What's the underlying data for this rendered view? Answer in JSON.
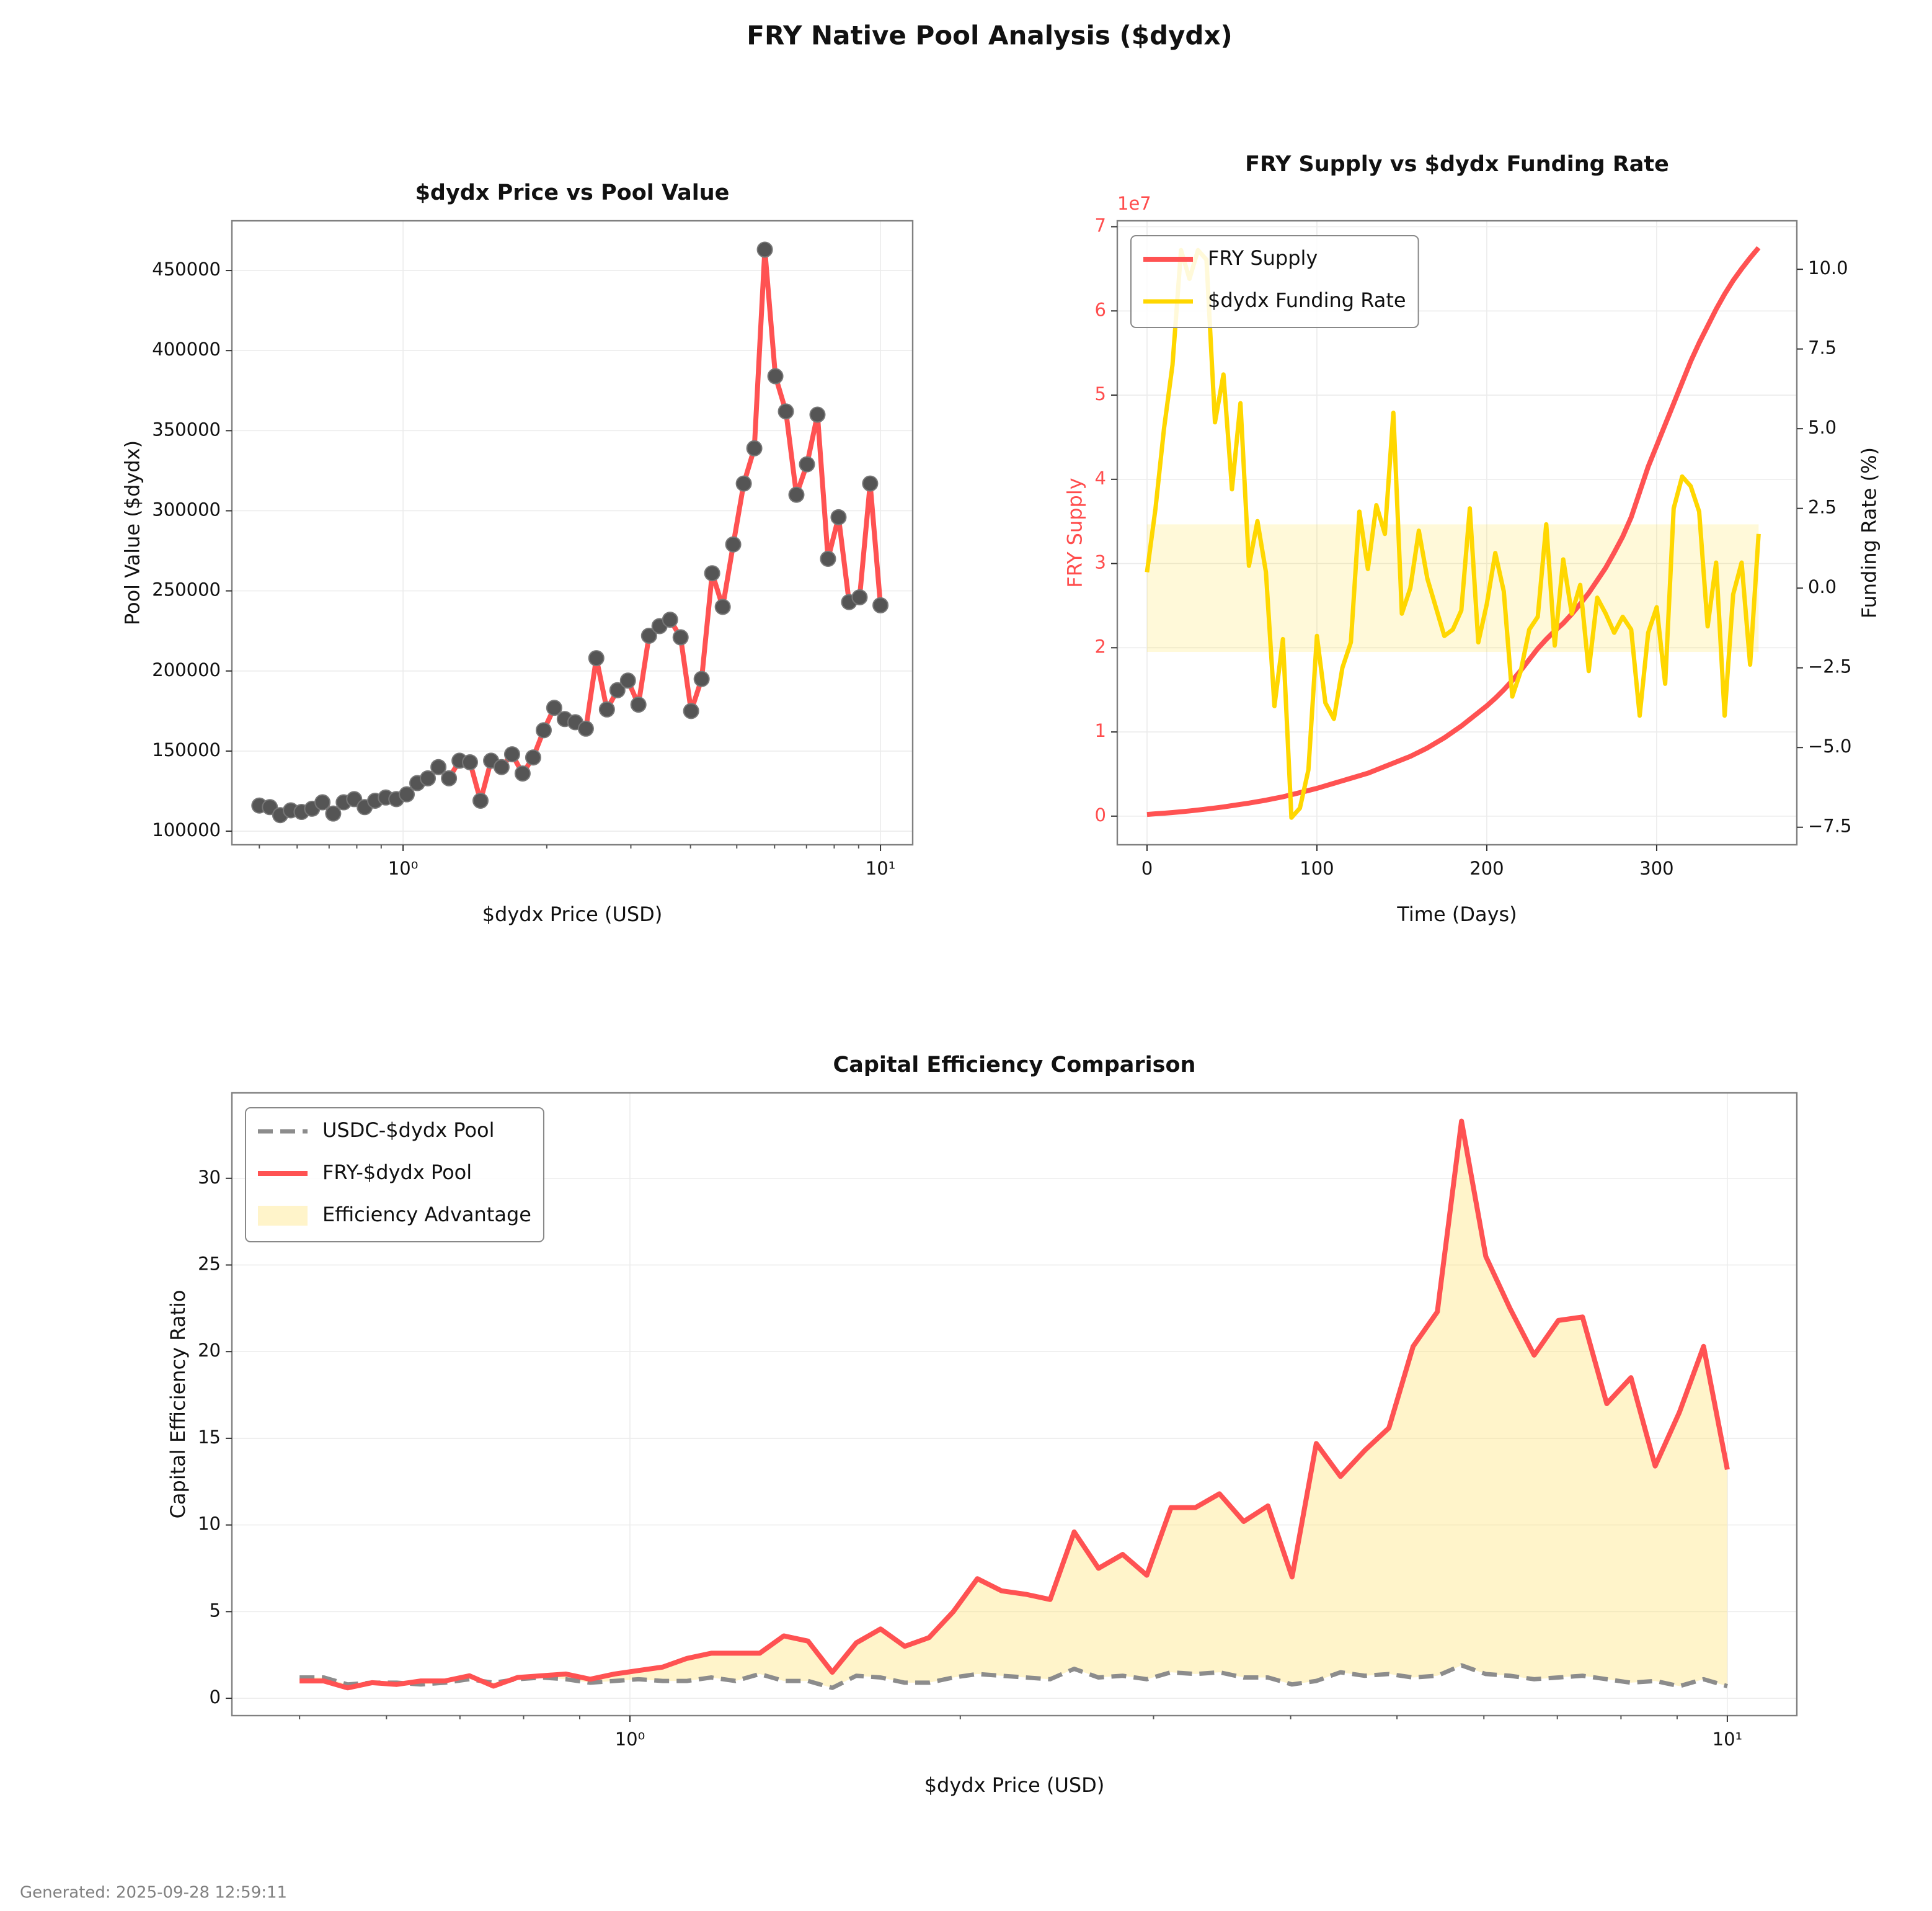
{
  "title": "FRY Native Pool Analysis ($dydx)",
  "footer": "Generated: 2025-09-28 12:59:11",
  "chart_data": [
    {
      "type": "line",
      "title": "$dydx Price vs Pool Value",
      "xlabel": "$dydx Price (USD)",
      "ylabel": "Pool Value ($dydx)",
      "xscale": "log",
      "grid": true,
      "xlim": [
        0.438,
        11.68
      ],
      "xticks": [
        {
          "value": 1,
          "label": "10⁰"
        },
        {
          "value": 10,
          "label": "10¹"
        }
      ],
      "xminorticks": [
        0.5,
        0.6,
        0.7,
        0.8,
        0.9,
        2,
        3,
        4,
        5,
        6,
        7,
        8,
        9
      ],
      "ylim": [
        91500,
        481000
      ],
      "yticks": [
        100000,
        150000,
        200000,
        250000,
        300000,
        350000,
        400000,
        450000
      ],
      "marker_color": "#555555",
      "x": [
        0.5,
        0.526,
        0.553,
        0.582,
        0.613,
        0.645,
        0.678,
        0.714,
        0.751,
        0.79,
        0.831,
        0.874,
        0.92,
        0.968,
        1.018,
        1.071,
        1.127,
        1.186,
        1.248,
        1.313,
        1.381,
        1.453,
        1.529,
        1.608,
        1.692,
        1.78,
        1.873,
        1.971,
        2.073,
        2.181,
        2.295,
        2.415,
        2.54,
        2.673,
        2.812,
        2.958,
        3.112,
        3.275,
        3.445,
        3.625,
        3.814,
        4.012,
        4.221,
        4.441,
        4.673,
        4.916,
        5.172,
        5.442,
        5.725,
        6.024,
        6.337,
        6.667,
        7.015,
        7.38,
        7.765,
        8.169,
        8.595,
        9.043,
        9.514,
        10
      ],
      "series": [
        {
          "color": "#ff5252",
          "width": 4,
          "values": [
            116000,
            115000,
            110000,
            113000,
            112000,
            114000,
            118000,
            111000,
            118000,
            120000,
            115000,
            119000,
            121000,
            120000,
            123000,
            130000,
            133000,
            140000,
            133000,
            144000,
            143000,
            119000,
            144000,
            140000,
            148000,
            136000,
            146000,
            163000,
            177000,
            170000,
            168000,
            164000,
            208000,
            176000,
            188000,
            194000,
            179000,
            222000,
            228000,
            232000,
            221000,
            175000,
            195000,
            261000,
            240000,
            279000,
            317000,
            339000,
            463000,
            384000,
            362000,
            310000,
            329000,
            360000,
            270000,
            296000,
            243000,
            246000,
            317000,
            241000
          ]
        }
      ]
    },
    {
      "type": "line",
      "title": "FRY Supply vs $dydx Funding Rate",
      "xlabel": "Time (Days)",
      "ylabel": "FRY Supply",
      "ylabel_color": "#ff4d4d",
      "y_offset_label": "1e7",
      "y2label": "Funding Rate (%)",
      "grid": true,
      "legend": "upper left",
      "xlim": [
        -17.5,
        382.5
      ],
      "xticks": [
        0,
        100,
        200,
        300
      ],
      "ylim": [
        -3400000,
        70700000
      ],
      "yticks": [
        {
          "value": 0,
          "label": "0"
        },
        {
          "value": 10000000,
          "label": "1"
        },
        {
          "value": 20000000,
          "label": "2"
        },
        {
          "value": 30000000,
          "label": "3"
        },
        {
          "value": 40000000,
          "label": "4"
        },
        {
          "value": 50000000,
          "label": "5"
        },
        {
          "value": 60000000,
          "label": "6"
        },
        {
          "value": 70000000,
          "label": "7"
        }
      ],
      "y2lim": [
        -8.05,
        11.52
      ],
      "y2ticks": [
        {
          "value": -7.5,
          "label": "−7.5"
        },
        {
          "value": -5,
          "label": "−5.0"
        },
        {
          "value": -2.5,
          "label": "−2.5"
        },
        {
          "value": 0,
          "label": "0.0"
        },
        {
          "value": 2.5,
          "label": "2.5"
        },
        {
          "value": 5,
          "label": "5.0"
        },
        {
          "value": 7.5,
          "label": "7.5"
        },
        {
          "value": 10,
          "label": "10.0"
        }
      ],
      "band": {
        "axis": "y2",
        "range": [
          -2,
          2
        ],
        "color": "#ffd700",
        "opacity": 0.15
      },
      "x": [
        0,
        5,
        10,
        15,
        20,
        25,
        30,
        35,
        40,
        45,
        50,
        55,
        60,
        65,
        70,
        75,
        80,
        85,
        90,
        95,
        100,
        105,
        110,
        115,
        120,
        125,
        130,
        135,
        140,
        145,
        150,
        155,
        160,
        165,
        170,
        175,
        180,
        185,
        190,
        195,
        200,
        205,
        210,
        215,
        220,
        225,
        230,
        235,
        240,
        245,
        250,
        255,
        260,
        265,
        270,
        275,
        280,
        285,
        290,
        295,
        300,
        305,
        310,
        315,
        320,
        325,
        330,
        335,
        340,
        345,
        350,
        355,
        360
      ],
      "series": [
        {
          "name": "FRY Supply",
          "color": "#ff5252",
          "width": 4,
          "axis": "y",
          "values": [
            200000,
            280000,
            350000,
            430000,
            520000,
            620000,
            730000,
            850000,
            970000,
            1100000,
            1250000,
            1400000,
            1550000,
            1720000,
            1900000,
            2100000,
            2300000,
            2550000,
            2800000,
            3050000,
            3300000,
            3600000,
            3900000,
            4200000,
            4500000,
            4800000,
            5100000,
            5500000,
            5900000,
            6300000,
            6700000,
            7100000,
            7600000,
            8100000,
            8700000,
            9300000,
            10000000,
            10700000,
            11500000,
            12300000,
            13100000,
            14000000,
            15000000,
            16100000,
            17300000,
            18600000,
            19900000,
            21000000,
            22000000,
            22900000,
            24000000,
            25200000,
            26500000,
            28000000,
            29500000,
            31300000,
            33200000,
            35500000,
            38500000,
            41500000,
            44000000,
            46500000,
            49000000,
            51500000,
            54000000,
            56200000,
            58200000,
            60200000,
            62000000,
            63600000,
            65000000,
            66300000,
            67500000
          ]
        },
        {
          "name": "$dydx Funding Rate",
          "color": "#ffd700",
          "width": 3.5,
          "axis": "y2",
          "values": [
            0.5,
            2.5,
            5.0,
            7.0,
            10.6,
            9.7,
            10.6,
            10.3,
            5.2,
            6.7,
            3.1,
            5.8,
            0.7,
            2.1,
            0.5,
            -3.7,
            -1.6,
            -7.2,
            -6.9,
            -5.7,
            -1.5,
            -3.6,
            -4.1,
            -2.5,
            -1.7,
            2.4,
            0.6,
            2.6,
            1.7,
            5.5,
            -0.8,
            0,
            1.8,
            0.3,
            -0.6,
            -1.5,
            -1.3,
            -0.7,
            2.5,
            -1.7,
            -0.5,
            1.1,
            -0.1,
            -3.4,
            -2.6,
            -1.3,
            -0.9,
            2.0,
            -1.8,
            0.9,
            -0.8,
            0.1,
            -2.6,
            -0.3,
            -0.8,
            -1.4,
            -0.9,
            -1.3,
            -4.0,
            -1.4,
            -0.6,
            -3.0,
            2.5,
            3.5,
            3.2,
            2.4,
            -1.2,
            0.8,
            -4.0,
            -0.2,
            0.8,
            -2.4,
            1.7
          ]
        }
      ]
    },
    {
      "type": "line",
      "title": "Capital Efficiency Comparison",
      "xlabel": "$dydx Price (USD)",
      "ylabel": "Capital Efficiency Ratio",
      "xscale": "log",
      "grid": true,
      "legend": "upper left",
      "xlim": [
        0.4338,
        11.57
      ],
      "xticks": [
        {
          "value": 1,
          "label": "10⁰"
        },
        {
          "value": 10,
          "label": "10¹"
        }
      ],
      "xminorticks": [
        0.5,
        0.6,
        0.7,
        0.8,
        0.9,
        2,
        3,
        4,
        5,
        6,
        7,
        8,
        9
      ],
      "ylim": [
        -1.0,
        34.93
      ],
      "yticks": [
        0,
        5,
        10,
        15,
        20,
        25,
        30
      ],
      "fill": {
        "name": "Efficiency Advantage",
        "color": "#ffe066",
        "opacity": 0.35
      },
      "x": [
        0.5,
        0.526,
        0.553,
        0.582,
        0.613,
        0.645,
        0.678,
        0.714,
        0.751,
        0.79,
        0.831,
        0.874,
        0.92,
        0.968,
        1.018,
        1.071,
        1.127,
        1.186,
        1.248,
        1.313,
        1.381,
        1.453,
        1.529,
        1.608,
        1.692,
        1.78,
        1.873,
        1.971,
        2.073,
        2.181,
        2.295,
        2.415,
        2.54,
        2.673,
        2.812,
        2.958,
        3.112,
        3.275,
        3.445,
        3.625,
        3.814,
        4.012,
        4.221,
        4.441,
        4.673,
        4.916,
        5.172,
        5.442,
        5.725,
        6.024,
        6.337,
        6.667,
        7.015,
        7.38,
        7.765,
        8.169,
        8.595,
        9.043,
        9.514,
        10
      ],
      "series": [
        {
          "name": "USDC-$dydx Pool",
          "color": "#8c8c8c",
          "width": 3.5,
          "dash": true,
          "values": [
            1.2,
            1.2,
            0.8,
            0.9,
            0.9,
            0.8,
            0.9,
            1.1,
            0.9,
            1.1,
            1.2,
            1.1,
            0.9,
            1.0,
            1.1,
            1.0,
            1.0,
            1.2,
            1.0,
            1.4,
            1.0,
            1.0,
            0.6,
            1.3,
            1.2,
            0.9,
            0.9,
            1.2,
            1.4,
            1.3,
            1.2,
            1.1,
            1.7,
            1.2,
            1.3,
            1.1,
            1.5,
            1.4,
            1.5,
            1.2,
            1.2,
            0.8,
            1.0,
            1.5,
            1.3,
            1.4,
            1.2,
            1.3,
            1.9,
            1.4,
            1.3,
            1.1,
            1.2,
            1.3,
            1.1,
            0.9,
            1.0,
            0.7,
            1.1,
            0.7
          ]
        },
        {
          "name": "FRY-$dydx Pool",
          "color": "#ff5252",
          "width": 4,
          "values": [
            1.0,
            1.0,
            0.6,
            0.9,
            0.8,
            1.0,
            1.0,
            1.3,
            0.7,
            1.2,
            1.3,
            1.4,
            1.1,
            1.4,
            1.6,
            1.8,
            2.3,
            2.6,
            2.6,
            2.6,
            3.6,
            3.3,
            1.5,
            3.2,
            4.0,
            3.0,
            3.5,
            5.0,
            6.9,
            6.2,
            6.0,
            5.7,
            9.6,
            7.5,
            8.3,
            7.1,
            11.0,
            11.0,
            11.8,
            10.2,
            11.1,
            7.0,
            14.7,
            12.8,
            14.3,
            15.6,
            20.3,
            22.3,
            33.3,
            25.5,
            22.5,
            19.8,
            21.8,
            22.0,
            17.0,
            18.5,
            13.4,
            16.5,
            20.3,
            13.2
          ]
        }
      ]
    }
  ]
}
